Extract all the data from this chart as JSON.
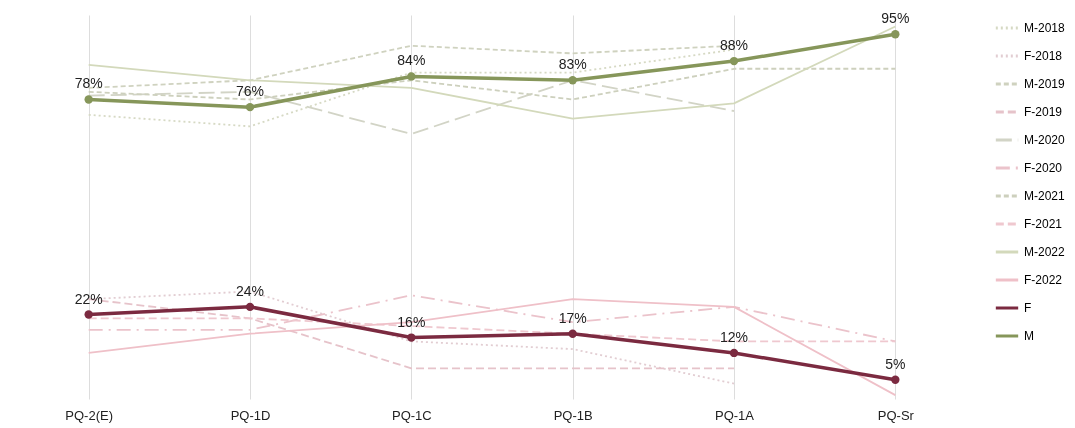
{
  "chart_data": {
    "type": "line",
    "categories": [
      "PQ-2(E)",
      "PQ-1D",
      "PQ-1C",
      "PQ-1B",
      "PQ-1A",
      "PQ-Sr"
    ],
    "tick_labels": "x",
    "grid": "x",
    "legend": "right",
    "series": [
      {
        "name": "M-2018",
        "color": "#d6d9c4",
        "line_style": "dotted",
        "marker": "none",
        "values": [
          74,
          71,
          85,
          85,
          91,
          null
        ]
      },
      {
        "name": "F-2018",
        "color": "#e2cdd2",
        "line_style": "dotted",
        "marker": "none",
        "values": [
          26,
          28,
          15,
          13,
          4,
          null
        ]
      },
      {
        "name": "M-2019",
        "color": "#cfd2bf",
        "line_style": "dashed",
        "marker": "none",
        "values": [
          81,
          83,
          92,
          90,
          92,
          null
        ]
      },
      {
        "name": "F-2019",
        "color": "#e6c3ca",
        "line_style": "dashed",
        "marker": "none",
        "values": [
          26,
          21,
          8,
          8,
          8,
          null
        ]
      },
      {
        "name": "M-2020",
        "color": "#d2d4c6",
        "line_style": "dashed",
        "marker": "none",
        "values": [
          79,
          80,
          69,
          83,
          75,
          null
        ]
      },
      {
        "name": "F-2020",
        "color": "#ebc3cb",
        "line_style": "dashed",
        "marker": "none",
        "values": [
          18,
          18,
          27,
          20,
          24,
          15
        ]
      },
      {
        "name": "M-2021",
        "color": "#cdd0bd",
        "line_style": "dashed",
        "marker": "none",
        "values": [
          80,
          78,
          83,
          78,
          86,
          86
        ]
      },
      {
        "name": "F-2021",
        "color": "#efc8cf",
        "line_style": "dashed",
        "marker": "none",
        "values": [
          21,
          21,
          19,
          17,
          15,
          15
        ]
      },
      {
        "name": "M-2022",
        "color": "#d3d9bb",
        "line_style": "solid",
        "marker": "none",
        "values": [
          87,
          83,
          81,
          73,
          77,
          97
        ]
      },
      {
        "name": "F-2022",
        "color": "#efc0c8",
        "line_style": "solid",
        "marker": "none",
        "values": [
          12,
          17,
          20,
          26,
          24,
          1
        ]
      },
      {
        "name": "F",
        "color": "#7b2a40",
        "line_style": "solid",
        "marker": "circle",
        "values": [
          22,
          24,
          16,
          17,
          12,
          5
        ],
        "value_labels": [
          "22%",
          "24%",
          "16%",
          "17%",
          "12%",
          "5%"
        ]
      },
      {
        "name": "M",
        "color": "#86965a",
        "line_style": "solid",
        "marker": "circle",
        "values": [
          78,
          76,
          84,
          83,
          88,
          95
        ],
        "value_labels": [
          "78%",
          "76%",
          "84%",
          "83%",
          "88%",
          "95%"
        ]
      }
    ]
  }
}
